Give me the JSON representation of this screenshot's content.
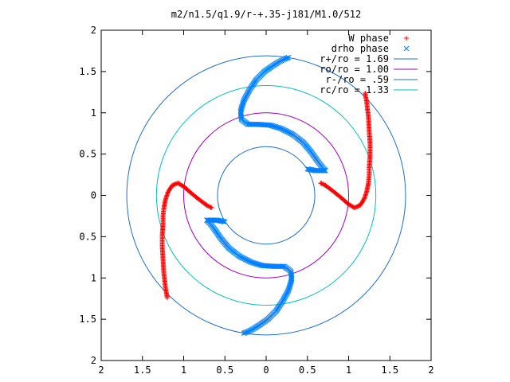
{
  "chart_data": {
    "type": "scatter",
    "title": "m2/n1.5/q1.9/r-+.35-j181/M1.0/512",
    "xlabel": "",
    "ylabel": "",
    "xlim": [
      -2,
      2
    ],
    "ylim": [
      -2,
      2
    ],
    "x_ticks": [
      -2,
      -1.5,
      -1,
      -0.5,
      0,
      0.5,
      1,
      1.5,
      2
    ],
    "y_ticks": [
      -2,
      -1.5,
      -1,
      -0.5,
      0,
      0.5,
      1,
      1.5,
      2
    ],
    "x_tick_labels": [
      "2",
      "1.5",
      "1",
      "0.5",
      "0",
      "0.5",
      "1",
      "1.5",
      "2"
    ],
    "y_tick_labels": [
      "2",
      "1.5",
      "1",
      "0.5",
      "0",
      "0.5",
      "1",
      "1.5",
      "2"
    ],
    "grid": false,
    "legend_position": "top-right",
    "legend": [
      {
        "label": "W phase",
        "marker": "plus",
        "color": "#ff0000"
      },
      {
        "label": "drho phase",
        "marker": "cross",
        "color": "#0080ff"
      },
      {
        "label": "r+/ro = 1.69",
        "marker": "line",
        "color": "#1f6fd0"
      },
      {
        "label": "ro/ro = 1.00",
        "marker": "line",
        "color": "#a000c0"
      },
      {
        "label": "r-/ro = .59",
        "marker": "line",
        "color": "#1f6fd0"
      },
      {
        "label": "rc/ro = 1.33",
        "marker": "line",
        "color": "#00c0c0"
      }
    ],
    "circles": [
      {
        "name": "r+/ro = 1.69",
        "radius": 1.69,
        "color": "#1f6fd0"
      },
      {
        "name": "ro/ro = 1.00",
        "radius": 1.0,
        "color": "#a000c0"
      },
      {
        "name": "r-/ro = .59",
        "radius": 0.59,
        "color": "#1f6fd0"
      },
      {
        "name": "rc/ro = 1.33",
        "radius": 1.33,
        "color": "#00c0c0"
      }
    ],
    "series": [
      {
        "name": "W phase",
        "marker": "plus",
        "color": "#ff0000",
        "arms": [
          [
            [
              1.2,
              1.24
            ],
            [
              1.22,
              1.12
            ],
            [
              1.24,
              0.95
            ],
            [
              1.25,
              0.78
            ],
            [
              1.26,
              0.62
            ],
            [
              1.26,
              0.48
            ],
            [
              1.25,
              0.35
            ],
            [
              1.25,
              0.25
            ],
            [
              1.24,
              0.15
            ],
            [
              1.22,
              0.05
            ],
            [
              1.19,
              -0.04
            ],
            [
              1.14,
              -0.12
            ],
            [
              1.07,
              -0.15
            ],
            [
              0.99,
              -0.1
            ],
            [
              0.9,
              -0.02
            ],
            [
              0.8,
              0.06
            ],
            [
              0.72,
              0.12
            ],
            [
              0.66,
              0.15
            ]
          ],
          [
            [
              -1.2,
              -1.24
            ],
            [
              -1.22,
              -1.12
            ],
            [
              -1.24,
              -0.95
            ],
            [
              -1.25,
              -0.78
            ],
            [
              -1.26,
              -0.62
            ],
            [
              -1.26,
              -0.48
            ],
            [
              -1.25,
              -0.35
            ],
            [
              -1.25,
              -0.25
            ],
            [
              -1.24,
              -0.15
            ],
            [
              -1.22,
              -0.05
            ],
            [
              -1.19,
              0.04
            ],
            [
              -1.14,
              0.12
            ],
            [
              -1.07,
              0.15
            ],
            [
              -0.99,
              0.1
            ],
            [
              -0.9,
              0.02
            ],
            [
              -0.8,
              -0.06
            ],
            [
              -0.72,
              -0.12
            ],
            [
              -0.66,
              -0.15
            ]
          ]
        ]
      },
      {
        "name": "drho phase",
        "marker": "cross",
        "color": "#0080ff",
        "arms": [
          [
            [
              0.27,
              1.67
            ],
            [
              0.22,
              1.65
            ],
            [
              0.16,
              1.62
            ],
            [
              0.08,
              1.57
            ],
            [
              -0.02,
              1.5
            ],
            [
              -0.12,
              1.4
            ],
            [
              -0.2,
              1.28
            ],
            [
              -0.27,
              1.15
            ],
            [
              -0.31,
              1.02
            ],
            [
              -0.3,
              0.92
            ],
            [
              -0.22,
              0.86
            ],
            [
              -0.1,
              0.86
            ],
            [
              0.05,
              0.85
            ],
            [
              0.18,
              0.81
            ],
            [
              0.32,
              0.74
            ],
            [
              0.45,
              0.64
            ],
            [
              0.55,
              0.52
            ],
            [
              0.62,
              0.42
            ],
            [
              0.68,
              0.34
            ],
            [
              0.72,
              0.3
            ],
            [
              0.6,
              0.3
            ],
            [
              0.5,
              0.32
            ]
          ],
          [
            [
              -0.27,
              -1.67
            ],
            [
              -0.22,
              -1.65
            ],
            [
              -0.16,
              -1.62
            ],
            [
              -0.08,
              -1.57
            ],
            [
              0.02,
              -1.5
            ],
            [
              0.12,
              -1.4
            ],
            [
              0.2,
              -1.28
            ],
            [
              0.27,
              -1.15
            ],
            [
              0.31,
              -1.02
            ],
            [
              0.3,
              -0.92
            ],
            [
              0.22,
              -0.86
            ],
            [
              0.1,
              -0.86
            ],
            [
              -0.05,
              -0.85
            ],
            [
              -0.18,
              -0.81
            ],
            [
              -0.32,
              -0.74
            ],
            [
              -0.45,
              -0.64
            ],
            [
              -0.55,
              -0.52
            ],
            [
              -0.62,
              -0.42
            ],
            [
              -0.68,
              -0.34
            ],
            [
              -0.72,
              -0.3
            ],
            [
              -0.6,
              -0.3
            ],
            [
              -0.5,
              -0.32
            ]
          ]
        ]
      }
    ]
  }
}
